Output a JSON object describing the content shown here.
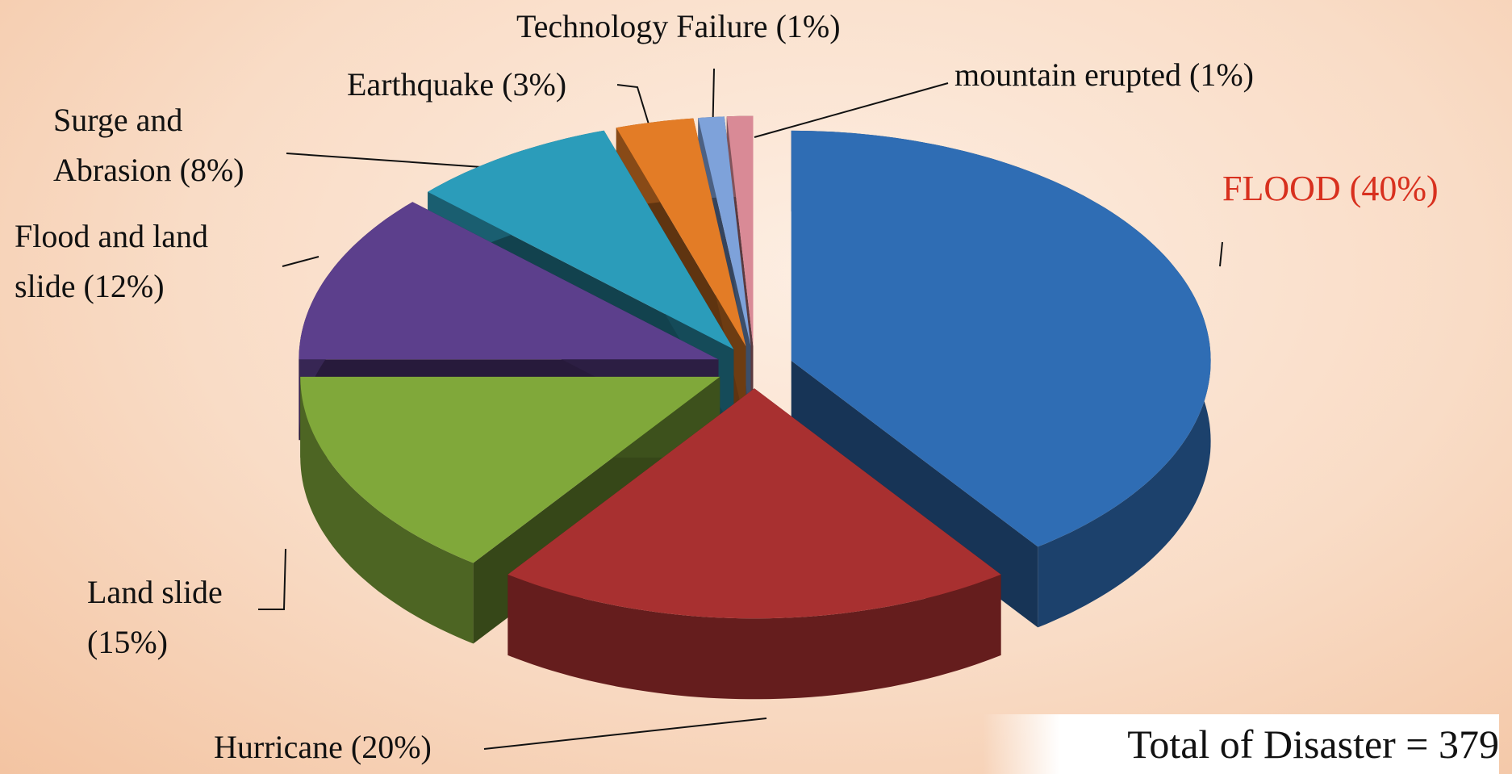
{
  "chart_data": {
    "type": "pie",
    "categories": [
      "FLOOD",
      "Hurricane",
      "Land slide",
      "Flood and land slide",
      "Surge and Abrasion",
      "Earthquake",
      "Technology Failure",
      "mountain erupted"
    ],
    "values": [
      40,
      20,
      15,
      12,
      8,
      3,
      1,
      1
    ],
    "value_labels": [
      "FLOOD (40%)",
      "Hurricane (20%)",
      "Land slide (15%)",
      "Flood and land slide (12%)",
      "Surge and Abrasion (8%)",
      "Earthquake (3%)",
      "Technology Failure (1%)",
      "mountain erupted (1%)"
    ],
    "colors": [
      "#2f6db4",
      "#a83030",
      "#80a83a",
      "#5c3f8c",
      "#2b9cba",
      "#e37c26",
      "#7ea2da",
      "#d98a96"
    ],
    "annotation": "Total of Disaster = 379"
  }
}
